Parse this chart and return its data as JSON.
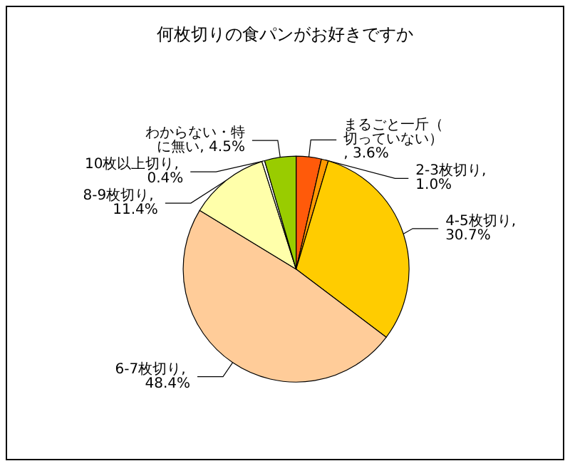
{
  "chart_data": {
    "type": "pie",
    "title": "何枚切りの食パンがお好きですか",
    "categories": [
      "まるごと一斤（切っていない）",
      "2-3枚切り",
      "4-5枚切り",
      "6-7枚切り",
      "8-9枚切り",
      "10枚以上切り",
      "わからない・特に無い"
    ],
    "values": [
      3.6,
      1.0,
      30.7,
      48.4,
      11.4,
      0.4,
      4.5
    ],
    "colors": [
      "#ff5a0a",
      "#ff9900",
      "#ffcc00",
      "#ffcc99",
      "#ffffaa",
      "#ffffff",
      "#99cc00"
    ],
    "value_labels": [
      ", 3.6%",
      ", 1.0%",
      ", 30.7%",
      ", 48.4%",
      ", 11.4%",
      ", 0.4%",
      ", 4.5%"
    ],
    "legend": false
  }
}
